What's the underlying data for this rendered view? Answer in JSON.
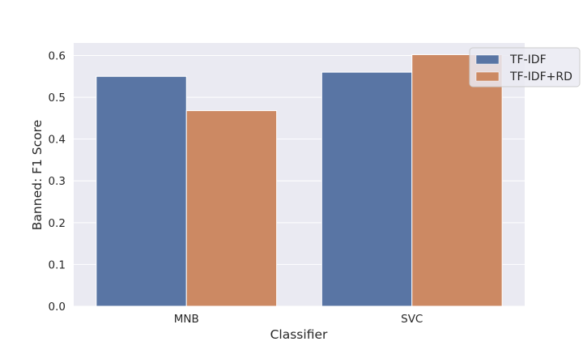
{
  "chart_data": {
    "type": "bar",
    "title": "",
    "xlabel": "Classifier",
    "ylabel": "Banned: F1 Score",
    "categories": [
      "MNB",
      "SVC"
    ],
    "series": [
      {
        "name": "TF-IDF",
        "values": [
          0.55,
          0.56
        ],
        "color": "#5975a4"
      },
      {
        "name": "TF-IDF+RD",
        "values": [
          0.468,
          0.602
        ],
        "color": "#cc8963"
      }
    ],
    "ylim": [
      0,
      0.63
    ],
    "yticks": [
      0.0,
      0.1,
      0.2,
      0.3,
      0.4,
      0.5,
      0.6
    ],
    "ytick_labels": [
      "0.0",
      "0.1",
      "0.2",
      "0.3",
      "0.4",
      "0.5",
      "0.6"
    ],
    "grid": true,
    "legend_position": "top-right",
    "background_color": "#eaeaf2"
  }
}
